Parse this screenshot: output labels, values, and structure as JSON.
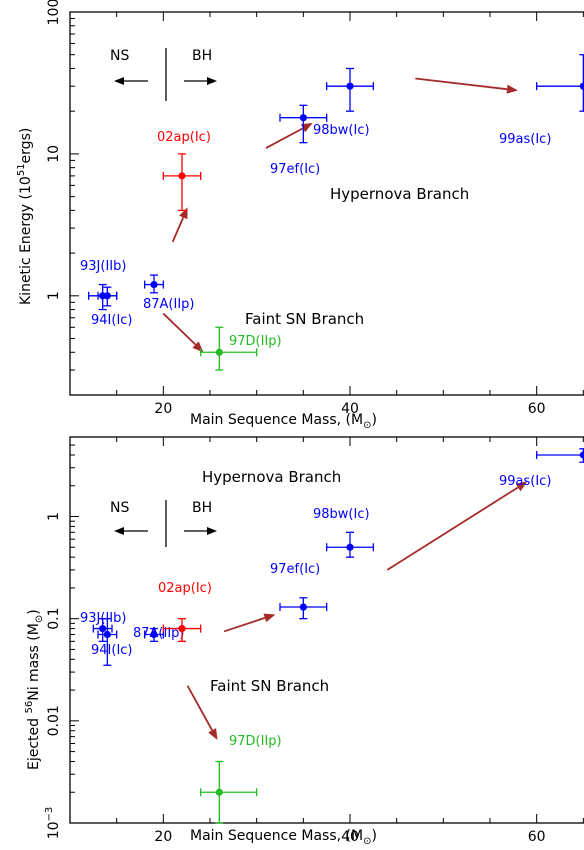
{
  "chart_data": [
    {
      "type": "scatter",
      "xlabel": "Main Sequence Mass, (M",
      "xlabel_sub": "⊙",
      "xlabel_close": ")",
      "ylabel_pre": "Kinetic Energy (10",
      "ylabel_sup": "51",
      "ylabel_post": "ergs)",
      "xlim": [
        10,
        70
      ],
      "ylim": [
        0.2,
        100
      ],
      "yscale": "log",
      "x_ticks": [
        20,
        40,
        60
      ],
      "y_ticks": [
        {
          "v": 1,
          "label": "1"
        },
        {
          "v": 10,
          "label": "10"
        },
        {
          "v": 100,
          "label": "100"
        }
      ],
      "points": [
        {
          "name": "93J(IIb)",
          "x": 13.5,
          "y": 1.0,
          "xerr": [
            1.5,
            1.5
          ],
          "yerr": [
            0.2,
            0.2
          ],
          "color": "#0000ff"
        },
        {
          "name": "94I(Ic)",
          "x": 14.0,
          "y": 1.0,
          "xerr": [
            1.0,
            1.0
          ],
          "yerr": [
            0.15,
            0.15
          ],
          "color": "#0000ff"
        },
        {
          "name": "87A(IIp)",
          "x": 19.0,
          "y": 1.2,
          "xerr": [
            1.0,
            1.0
          ],
          "yerr": [
            0.15,
            0.2
          ],
          "color": "#0000ff"
        },
        {
          "name": "02ap(Ic)",
          "x": 22.0,
          "y": 7.0,
          "xerr": [
            2.0,
            2.0
          ],
          "yerr": [
            3.0,
            3.0
          ],
          "color": "#ff0000"
        },
        {
          "name": "97D(IIp)",
          "x": 26.0,
          "y": 0.4,
          "xerr": [
            2.0,
            4.0
          ],
          "yerr": [
            0.1,
            0.2
          ],
          "color": "#22bb22"
        },
        {
          "name": "97ef(Ic)",
          "x": 35.0,
          "y": 18.0,
          "xerr": [
            2.5,
            2.5
          ],
          "yerr": [
            6.0,
            4.0
          ],
          "color": "#0000ff"
        },
        {
          "name": "98bw(Ic)",
          "x": 40.0,
          "y": 30.0,
          "xerr": [
            2.5,
            2.5
          ],
          "yerr": [
            10.0,
            10.0
          ],
          "color": "#0000ff"
        },
        {
          "name": "99as(Ic)",
          "x": 65.0,
          "y": 30.0,
          "xerr": [
            5.0,
            5.0
          ],
          "yerr": [
            10.0,
            20.0
          ],
          "color": "#0000ff"
        }
      ],
      "annotations": {
        "hypernova": "Hypernova Branch",
        "faint": "Faint SN Branch",
        "ns": "NS",
        "bh": "BH"
      }
    },
    {
      "type": "scatter",
      "xlabel": "Main Sequence Mass, (M",
      "xlabel_sub": "⊙",
      "xlabel_close": ")",
      "ylabel_pre": "Ejected ",
      "ylabel_sup": "56",
      "ylabel_post": "Ni mass (M",
      "ylabel_sub": "⊙",
      "ylabel_close": ")",
      "xlim": [
        10,
        70
      ],
      "ylim": [
        0.001,
        6
      ],
      "yscale": "log",
      "x_ticks": [
        20,
        40,
        60
      ],
      "y_ticks": [
        {
          "v": 0.001,
          "label": "10",
          "sup": "−3"
        },
        {
          "v": 0.01,
          "label": "0.01"
        },
        {
          "v": 0.1,
          "label": "0.1"
        },
        {
          "v": 1,
          "label": "1"
        }
      ],
      "points": [
        {
          "name": "93J(IIb)",
          "x": 13.5,
          "y": 0.08,
          "xerr": [
            1.0,
            1.0
          ],
          "yerr": [
            0.02,
            0.02
          ],
          "color": "#0000ff"
        },
        {
          "name": "94I(Ic)",
          "x": 14.0,
          "y": 0.07,
          "xerr": [
            1.0,
            1.0
          ],
          "yerr": [
            0.035,
            0.03
          ],
          "color": "#0000ff"
        },
        {
          "name": "87A(IIp)",
          "x": 19.0,
          "y": 0.07,
          "xerr": [
            1.0,
            1.0
          ],
          "yerr": [
            0.01,
            0.01
          ],
          "color": "#0000ff"
        },
        {
          "name": "02ap(Ic)",
          "x": 22.0,
          "y": 0.08,
          "xerr": [
            2.0,
            2.0
          ],
          "yerr": [
            0.02,
            0.02
          ],
          "color": "#ff0000"
        },
        {
          "name": "97D(IIp)",
          "x": 26.0,
          "y": 0.002,
          "xerr": [
            2.0,
            4.0
          ],
          "yerr": [
            0.001,
            0.002
          ],
          "color": "#22bb22"
        },
        {
          "name": "97ef(Ic)",
          "x": 35.0,
          "y": 0.13,
          "xerr": [
            2.5,
            2.5
          ],
          "yerr": [
            0.03,
            0.03
          ],
          "color": "#0000ff"
        },
        {
          "name": "98bw(Ic)",
          "x": 40.0,
          "y": 0.5,
          "xerr": [
            2.5,
            2.5
          ],
          "yerr": [
            0.1,
            0.2
          ],
          "color": "#0000ff"
        },
        {
          "name": "99as(Ic)",
          "x": 65.0,
          "y": 4.0,
          "xerr": [
            5.0,
            5.0
          ],
          "yerr": [
            0.6,
            0.6
          ],
          "color": "#0000ff"
        }
      ],
      "annotations": {
        "hypernova": "Hypernova Branch",
        "faint": "Faint SN Branch",
        "ns": "NS",
        "bh": "BH"
      }
    }
  ],
  "colors": {
    "annotation": "#a52a2a",
    "arrow": "#a52a2a"
  }
}
